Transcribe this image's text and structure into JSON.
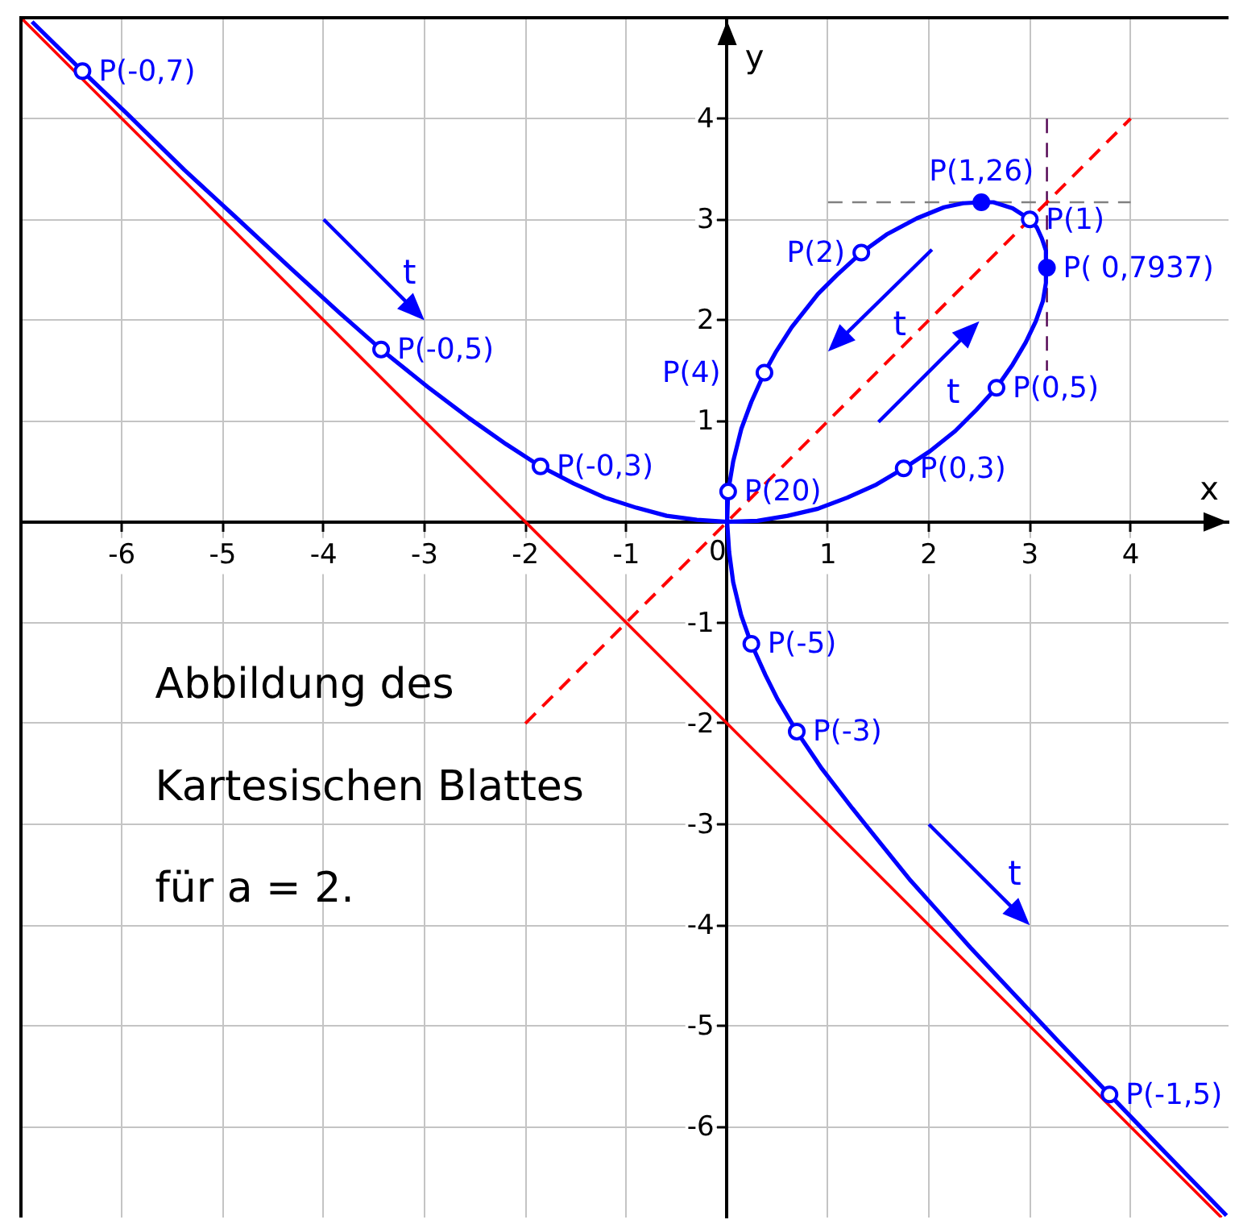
{
  "chart_data": {
    "type": "line",
    "xlabel": "x",
    "ylabel": "y",
    "xlim": [
      -7,
      4.97
    ],
    "ylim": [
      -6.9,
      5
    ],
    "xticks": [
      -6,
      -5,
      -4,
      -3,
      -2,
      -1,
      0,
      1,
      2,
      3,
      4
    ],
    "yticks": [
      -6,
      -5,
      -4,
      -3,
      -2,
      -1,
      1,
      2,
      3,
      4
    ],
    "grid": true,
    "series": [
      {
        "color": "#0000ff",
        "x": [
          -6.89,
          -6.39,
          -5.95,
          -5.38,
          -4.88,
          -4.32,
          -3.85,
          -3.43,
          -2.97,
          -2.56,
          -2.19,
          -1.85,
          -1.52,
          -1.21,
          -0.9,
          -0.6,
          -0.3,
          0,
          0.3,
          0.6,
          0.9,
          1.19,
          1.48,
          1.75,
          2.01,
          2.26,
          2.47,
          2.67,
          2.83,
          2.96,
          3.06,
          3.13,
          3.16,
          3.16,
          3.12,
          3.07,
          3,
          2.83,
          2.64,
          2.52,
          2.34,
          2.15,
          1.88,
          1.58,
          1.33,
          1.09,
          0.9,
          0.64,
          0.48,
          0.37,
          0.24,
          0.14,
          0.06,
          0.01,
          0,
          0.02,
          0.06,
          0.14,
          0.24,
          0.38,
          0.5,
          0.69,
          0.94,
          1.24,
          1.53,
          1.82,
          2.08,
          2.41,
          2.84,
          3.28,
          3.79,
          4.25,
          4.57,
          4.95
        ],
        "values": [
          4.96,
          4.47,
          4.05,
          3.49,
          3.03,
          2.51,
          2.08,
          1.71,
          1.34,
          1.03,
          0.77,
          0.55,
          0.38,
          0.24,
          0.14,
          0.06,
          0.02,
          0,
          0.01,
          0.06,
          0.13,
          0.24,
          0.37,
          0.53,
          0.7,
          0.9,
          1.11,
          1.33,
          1.56,
          1.78,
          1.99,
          2.19,
          2.37,
          2.69,
          2.81,
          2.92,
          3,
          3.11,
          3.17,
          3.17,
          3.16,
          3.12,
          3.01,
          2.85,
          2.67,
          2.45,
          2.26,
          1.93,
          1.68,
          1.48,
          1.19,
          0.92,
          0.6,
          0.3,
          0,
          -0.3,
          -0.6,
          -0.93,
          -1.21,
          -1.52,
          -1.76,
          -2.08,
          -2.45,
          -2.84,
          -3.2,
          -3.56,
          -3.85,
          -4.22,
          -4.68,
          -5.15,
          -5.68,
          -6.16,
          -6.49,
          -6.88
        ]
      },
      {
        "color": "#ff0000",
        "x": [
          -7,
          4.9
        ],
        "values": [
          5,
          -6.9
        ]
      },
      {
        "color": "#ff0000",
        "line_style": "dashed",
        "x": [
          -2,
          4
        ],
        "values": [
          -2,
          4
        ]
      },
      {
        "color": "#808080",
        "line_style": "dashed",
        "x": [
          1,
          4
        ],
        "values": [
          3.17,
          3.17
        ]
      },
      {
        "color": "#500050",
        "line_style": "dashed",
        "x": [
          3.17,
          3.17
        ],
        "values": [
          4,
          1.5
        ]
      },
      {
        "type": "scatter",
        "color": "#0000ff",
        "marker": "circle",
        "x": [
          -6.39,
          -3.43,
          -1.85,
          0.01,
          0.37,
          1.33,
          2.52,
          3,
          3.17,
          2.67,
          1.75,
          0.24,
          0.69,
          3.79
        ],
        "values": [
          4.47,
          1.71,
          0.55,
          0.3,
          1.48,
          2.67,
          3.17,
          3,
          2.52,
          1.33,
          0.53,
          -1.21,
          -2.08,
          -5.68
        ],
        "colors": [
          "#ffffff",
          "#ffffff",
          "#ffffff",
          "#ffffff",
          "#ffffff",
          "#ffffff",
          "#0000ff",
          "#ffffff",
          "#0000ff",
          "#ffffff",
          "#ffffff",
          "#ffffff",
          "#ffffff",
          "#ffffff"
        ]
      }
    ],
    "annotations": [
      {
        "text": "P(-0,7)",
        "x": -6.39,
        "y": 4.47
      },
      {
        "text": "P(-0,5)",
        "x": -3.43,
        "y": 1.71
      },
      {
        "text": "P(-0,3)",
        "x": -1.85,
        "y": 0.55
      },
      {
        "text": "P(20)",
        "x": 0.01,
        "y": 0.3
      },
      {
        "text": "P(4)",
        "x": 0.37,
        "y": 1.48
      },
      {
        "text": "P(2)",
        "x": 1.33,
        "y": 2.67
      },
      {
        "text": "P(1,26)",
        "x": 2.52,
        "y": 3.17
      },
      {
        "text": "P(1)",
        "x": 3,
        "y": 3
      },
      {
        "text": "P( 0,7937)",
        "x": 3.17,
        "y": 2.52
      },
      {
        "text": "P(0,5)",
        "x": 2.67,
        "y": 1.33
      },
      {
        "text": "P(0,3)",
        "x": 1.75,
        "y": 0.53
      },
      {
        "text": "P(-5)",
        "x": 0.24,
        "y": -1.21
      },
      {
        "text": "P(-3)",
        "x": 0.69,
        "y": -2.08
      },
      {
        "text": "P(-1,5)",
        "x": 3.79,
        "y": -5.68
      },
      "t",
      "t",
      "t",
      "t",
      "Abbildung des",
      "Kartesischen Blattes",
      "für a = 2."
    ]
  }
}
